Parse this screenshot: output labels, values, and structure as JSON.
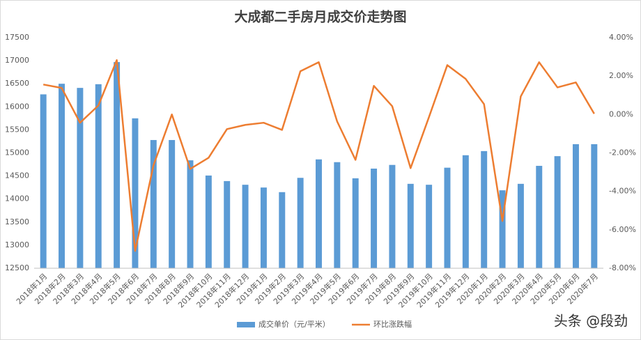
{
  "chart_data": {
    "type": "bar-line",
    "title": "大成都二手房月成交价走势图",
    "categories": [
      "2018年1月",
      "2018年2月",
      "2018年3月",
      "2018年4月",
      "2018年5月",
      "2018年6月",
      "2018年7月",
      "2018年8月",
      "2018年9月",
      "2018年10月",
      "2018年11月",
      "2018年12月",
      "2019年1月",
      "2019年2月",
      "2019年3月",
      "2019年4月",
      "2019年5月",
      "2019年6月",
      "2019年7月",
      "2019年8月",
      "2019年9月",
      "2019年10月",
      "2019年11月",
      "2019年12月",
      "2020年1月",
      "2020年2月",
      "2020年3月",
      "2020年4月",
      "2020年5月",
      "2020年6月",
      "2020年7月"
    ],
    "series": [
      {
        "name": "成交单价（元/平米）",
        "color": "#5b9bd5",
        "kind": "bar",
        "values": [
          16270,
          16500,
          16410,
          16490,
          16970,
          15750,
          15280,
          15280,
          14840,
          14510,
          14390,
          14310,
          14250,
          14150,
          14460,
          14860,
          14800,
          14450,
          14660,
          14740,
          14330,
          14310,
          14680,
          14950,
          15040,
          14190,
          14330,
          14720,
          14930,
          15190,
          15190
        ]
      },
      {
        "name": "环比涨跌幅",
        "color": "#ed7d31",
        "kind": "line",
        "axis": "y2",
        "values": [
          1.56,
          1.38,
          -0.43,
          0.47,
          2.83,
          -7.1,
          -2.64,
          0,
          -2.83,
          -2.25,
          -0.76,
          -0.54,
          -0.43,
          -0.8,
          2.25,
          2.72,
          -0.36,
          -2.36,
          1.49,
          0.43,
          -2.79,
          -0.14,
          2.57,
          1.85,
          0.54,
          -5.54,
          0.94,
          2.72,
          1.41,
          1.67,
          0.04
        ]
      }
    ],
    "ylim": [
      12500,
      17500
    ],
    "yticks": [
      12500,
      13000,
      13500,
      14000,
      14500,
      15000,
      15500,
      16000,
      16500,
      17000,
      17500
    ],
    "y2lim": [
      -8,
      4
    ],
    "y2ticks": [
      {
        "value": -8,
        "label": "-8.00%"
      },
      {
        "value": -6,
        "label": "-6.00%"
      },
      {
        "value": -4,
        "label": "-4.00%"
      },
      {
        "value": -2,
        "label": "-2.00%"
      },
      {
        "value": 0,
        "label": "0.00%"
      },
      {
        "value": 2,
        "label": "2.00%"
      },
      {
        "value": 4,
        "label": "4.00%"
      }
    ],
    "grid": false,
    "legend": "bottom",
    "watermark": "头条 @段劲"
  }
}
